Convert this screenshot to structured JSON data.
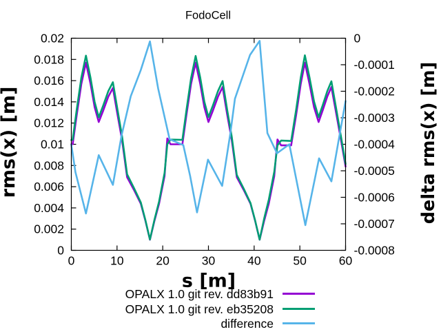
{
  "title": "FodoCell",
  "chart_data": {
    "type": "line",
    "title": "FodoCell",
    "xlabel": "s [m]",
    "ylabel": "rms(x) [m]",
    "y2label": "delta rms(x) [m]",
    "xlim": [
      0,
      60
    ],
    "ylim": [
      0,
      0.02
    ],
    "y2lim": [
      -0.0008,
      0
    ],
    "grid": false,
    "legend_position": "below-plot",
    "xticks": {
      "values": [
        0,
        10,
        20,
        30,
        40,
        50,
        60
      ],
      "labels": [
        "0",
        "10",
        "20",
        "30",
        "40",
        "50",
        "60"
      ]
    },
    "yticks": {
      "values": [
        0,
        0.002,
        0.004,
        0.006,
        0.008,
        0.01,
        0.012,
        0.014,
        0.016,
        0.018,
        0.02
      ],
      "labels": [
        "0",
        "0.002",
        "0.004",
        "0.006",
        "0.008",
        "0.01",
        "0.012",
        "0.014",
        "0.016",
        "0.018",
        "0.02"
      ]
    },
    "y2ticks": {
      "values": [
        0,
        -0.0001,
        -0.0002,
        -0.0003,
        -0.0004,
        -0.0005,
        -0.0006,
        -0.0007,
        -0.0008
      ],
      "labels": [
        "0",
        "-0.0001",
        "-0.0002",
        "-0.0003",
        "-0.0004",
        "-0.0005",
        "-0.0006",
        "-0.0007",
        "-0.0008"
      ]
    },
    "series": [
      {
        "name": "OPALX 1.0 git rev. dd83b91",
        "color": "#9400d3",
        "axis": "left",
        "points": [
          [
            0,
            0.01
          ],
          [
            0.3,
            0.01
          ],
          [
            1.2,
            0.0128
          ],
          [
            2.2,
            0.0157
          ],
          [
            3.2,
            0.0177
          ],
          [
            4.2,
            0.0157
          ],
          [
            5.1,
            0.0135
          ],
          [
            6.0,
            0.0121
          ],
          [
            7.0,
            0.0132
          ],
          [
            8.1,
            0.0145
          ],
          [
            9.1,
            0.0153
          ],
          [
            10.1,
            0.0128
          ],
          [
            11.1,
            0.0104
          ],
          [
            12.2,
            0.0069
          ],
          [
            13.7,
            0.0057
          ],
          [
            15.2,
            0.0044
          ],
          [
            16.2,
            0.0028
          ],
          [
            17.2,
            0.001
          ],
          [
            18.2,
            0.0028
          ],
          [
            19.2,
            0.0044
          ],
          [
            20.4,
            0.007
          ],
          [
            21.0,
            0.01055
          ],
          [
            21.7,
            0.01
          ],
          [
            24.3,
            0.01
          ],
          [
            25.2,
            0.0128
          ],
          [
            26.2,
            0.0157
          ],
          [
            27.2,
            0.0177
          ],
          [
            28.2,
            0.0157
          ],
          [
            29.1,
            0.0135
          ],
          [
            30.0,
            0.0121
          ],
          [
            31.0,
            0.0132
          ],
          [
            32.1,
            0.0145
          ],
          [
            33.1,
            0.0154
          ],
          [
            34.1,
            0.0128
          ],
          [
            35.1,
            0.0104
          ],
          [
            36.2,
            0.0069
          ],
          [
            37.7,
            0.0057
          ],
          [
            39.2,
            0.0044
          ],
          [
            40.2,
            0.0028
          ],
          [
            41.2,
            0.001
          ],
          [
            42.2,
            0.0028
          ],
          [
            43.2,
            0.0044
          ],
          [
            44.4,
            0.007
          ],
          [
            45.1,
            0.01045
          ],
          [
            45.9,
            0.0099
          ],
          [
            48.1,
            0.0099
          ],
          [
            49.2,
            0.0128
          ],
          [
            50.2,
            0.0157
          ],
          [
            51.1,
            0.0177
          ],
          [
            52.1,
            0.0157
          ],
          [
            53.1,
            0.0135
          ],
          [
            54.1,
            0.0121
          ],
          [
            55.0,
            0.0132
          ],
          [
            56.0,
            0.0145
          ],
          [
            56.9,
            0.0154
          ],
          [
            58.0,
            0.0128
          ],
          [
            59.0,
            0.0104
          ],
          [
            60,
            0.0079
          ]
        ]
      },
      {
        "name": "OPALX 1.0 git rev. eb35208",
        "color": "#009e73",
        "axis": "left",
        "points": [
          [
            0,
            0.0104
          ],
          [
            0.3,
            0.01044
          ],
          [
            1.2,
            0.01333
          ],
          [
            2.2,
            0.0163
          ],
          [
            3.2,
            0.01836
          ],
          [
            4.2,
            0.01627
          ],
          [
            5.1,
            0.014
          ],
          [
            6.0,
            0.01254
          ],
          [
            7.0,
            0.01368
          ],
          [
            8.1,
            0.01502
          ],
          [
            9.1,
            0.01585
          ],
          [
            10.1,
            0.01327
          ],
          [
            11.1,
            0.01076
          ],
          [
            12.2,
            0.00718
          ],
          [
            13.7,
            0.00588
          ],
          [
            15.2,
            0.00452
          ],
          [
            16.2,
            0.00287
          ],
          [
            17.2,
            0.00102
          ],
          [
            18.2,
            0.00291
          ],
          [
            19.2,
            0.00461
          ],
          [
            20.4,
            0.0073
          ],
          [
            21.0,
            0.01
          ],
          [
            21.7,
            0.01044
          ],
          [
            24.3,
            0.01042
          ],
          [
            25.2,
            0.01326
          ],
          [
            26.2,
            0.01624
          ],
          [
            27.2,
            0.01833
          ],
          [
            28.2,
            0.0163
          ],
          [
            29.1,
            0.01402
          ],
          [
            30.0,
            0.01256
          ],
          [
            31.0,
            0.01369
          ],
          [
            32.1,
            0.01503
          ],
          [
            33.1,
            0.01596
          ],
          [
            34.1,
            0.01324
          ],
          [
            35.1,
            0.01072
          ],
          [
            36.2,
            0.00711
          ],
          [
            37.7,
            0.00583
          ],
          [
            39.2,
            0.00446
          ],
          [
            40.2,
            0.00284
          ],
          [
            41.2,
            0.00101
          ],
          [
            42.2,
            0.00302
          ],
          [
            43.2,
            0.00477
          ],
          [
            44.4,
            0.00741
          ],
          [
            45.1,
            0.0099
          ],
          [
            45.9,
            0.01035
          ],
          [
            48.1,
            0.01031
          ],
          [
            49.2,
            0.0133
          ],
          [
            50.2,
            0.0163
          ],
          [
            51.1,
            0.01839
          ],
          [
            52.1,
            0.01633
          ],
          [
            53.1,
            0.01404
          ],
          [
            54.1,
            0.01255
          ],
          [
            55.0,
            0.01368
          ],
          [
            56.0,
            0.01501
          ],
          [
            56.9,
            0.01594
          ],
          [
            58.0,
            0.01323
          ],
          [
            59.0,
            0.01073
          ],
          [
            60,
            0.00814
          ]
        ]
      },
      {
        "name": "difference",
        "color": "#56b4e9",
        "axis": "right",
        "points": [
          [
            0,
            -0.000401
          ],
          [
            0.9,
            -0.000505
          ],
          [
            3.2,
            -0.000661
          ],
          [
            6.0,
            -0.000441
          ],
          [
            9.1,
            -0.000553
          ],
          [
            11.0,
            -0.000366
          ],
          [
            13.0,
            -0.000219
          ],
          [
            15.2,
            -0.00012
          ],
          [
            17.2,
            -1.2e-05
          ],
          [
            19.0,
            -0.00019
          ],
          [
            21.5,
            -0.000381
          ],
          [
            24.5,
            -0.000403
          ],
          [
            26.0,
            -0.00052
          ],
          [
            27.5,
            -0.000657
          ],
          [
            29.9,
            -0.000458
          ],
          [
            33.0,
            -0.000557
          ],
          [
            34.8,
            -0.000358
          ],
          [
            35.8,
            -0.000228
          ],
          [
            39.1,
            -6.3e-05
          ],
          [
            41.2,
            -1e-05
          ],
          [
            42.9,
            -0.000358
          ],
          [
            45.0,
            -0.000434
          ],
          [
            47.7,
            -0.0004
          ],
          [
            51.2,
            -0.000705
          ],
          [
            54.2,
            -0.000453
          ],
          [
            56.9,
            -0.00054
          ],
          [
            60,
            -0.000237
          ]
        ]
      }
    ]
  }
}
